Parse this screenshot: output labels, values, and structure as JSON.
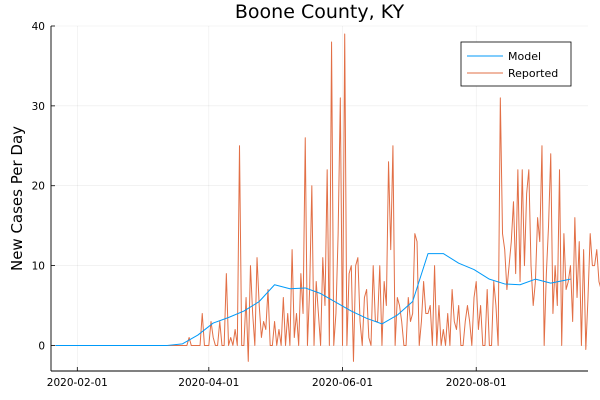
{
  "chart_data": {
    "type": "line",
    "title": "Boone County, KY",
    "xlabel": "",
    "ylabel": "New Cases Per Day",
    "x_ticks": [
      "2020-02-01",
      "2020-04-01",
      "2020-06-01",
      "2020-08-01"
    ],
    "y_ticks": [
      0,
      10,
      20,
      30,
      40
    ],
    "xlim": [
      "2020-01-20",
      "2020-09-21"
    ],
    "ylim": [
      -3.2,
      40
    ],
    "grid": true,
    "legend_position": "top-right",
    "x_start": "2020-01-22",
    "series": [
      {
        "name": "Model",
        "color": "#009af9",
        "x": [
          "2020-01-22",
          "2020-03-13",
          "2020-03-20",
          "2020-03-27",
          "2020-04-03",
          "2020-04-10",
          "2020-04-17",
          "2020-04-24",
          "2020-05-01",
          "2020-05-08",
          "2020-05-15",
          "2020-05-22",
          "2020-05-29",
          "2020-06-05",
          "2020-06-12",
          "2020-06-19",
          "2020-06-26",
          "2020-07-03",
          "2020-07-10",
          "2020-07-17",
          "2020-07-24",
          "2020-07-31",
          "2020-08-07",
          "2020-08-14",
          "2020-08-21",
          "2020-08-28",
          "2020-09-04",
          "2020-09-13"
        ],
        "values": [
          0,
          0,
          0.2,
          1.3,
          2.8,
          3.5,
          4.3,
          5.5,
          7.6,
          7.1,
          7.2,
          6.5,
          5.4,
          4.3,
          3.4,
          2.7,
          3.8,
          5.5,
          11.5,
          11.5,
          10.3,
          9.5,
          8.3,
          7.7,
          7.6,
          8.3,
          7.8,
          8.3
        ]
      },
      {
        "name": "Reported",
        "color": "#e26f46",
        "x_start": "2020-03-13",
        "values": [
          0,
          0,
          0,
          0,
          0,
          0,
          0,
          0,
          0,
          0,
          1,
          0,
          0,
          0,
          0,
          0,
          4,
          0,
          0,
          0,
          3,
          1,
          0,
          0,
          3,
          0,
          0,
          9,
          0,
          1,
          0,
          2,
          0,
          25,
          0,
          0,
          6,
          -2,
          10,
          4,
          0,
          11,
          5,
          1,
          3,
          2,
          7,
          0,
          0,
          3,
          0,
          2,
          0,
          6,
          0,
          4,
          0,
          12,
          1,
          4,
          0,
          9,
          4,
          26,
          0,
          7,
          20,
          0,
          8,
          4,
          0,
          11,
          5,
          22,
          0,
          38,
          0,
          4,
          14,
          31,
          0,
          39,
          0,
          9,
          10,
          -2,
          10,
          11,
          3,
          0,
          6,
          7,
          1,
          0,
          10,
          3,
          3,
          10,
          0,
          8,
          5,
          23,
          12,
          25,
          0,
          6,
          5,
          3,
          0,
          0,
          6,
          3,
          4,
          14,
          13,
          0,
          3,
          8,
          4,
          4,
          5,
          0,
          10,
          0,
          5,
          0,
          2,
          0,
          4,
          0,
          7,
          3,
          2,
          5,
          0,
          0,
          3,
          5,
          3,
          0,
          6,
          8,
          2,
          5,
          0,
          0,
          7,
          0,
          0,
          8,
          5,
          0,
          31,
          14,
          12,
          7,
          10,
          13,
          18,
          9,
          22,
          8,
          22,
          10,
          19,
          22,
          10,
          5,
          8,
          16,
          13,
          25,
          0,
          9,
          15,
          24,
          4,
          10,
          5,
          22,
          0,
          14,
          7,
          8,
          10,
          3,
          16,
          6,
          13,
          0,
          12,
          -0.5,
          6,
          14,
          10,
          10,
          12,
          8,
          7,
          11,
          13,
          6,
          7,
          16,
          4,
          5,
          11,
          6,
          11,
          13,
          5,
          10,
          4,
          14,
          11,
          12,
          0,
          12,
          13,
          2,
          8,
          11,
          6,
          14,
          5,
          8,
          13,
          16,
          5,
          11,
          3,
          8,
          14,
          4,
          10,
          11,
          9,
          11,
          6,
          13,
          10,
          7,
          20,
          22,
          10,
          5
        ]
      }
    ]
  }
}
